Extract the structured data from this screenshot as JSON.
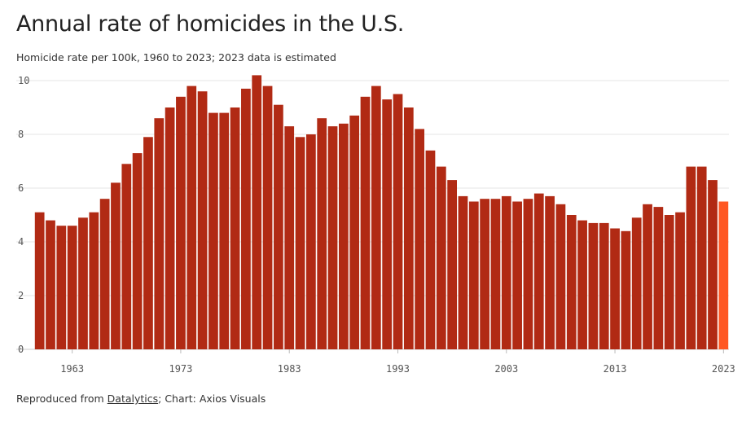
{
  "header": {
    "title": "Annual rate of homicides in the U.S.",
    "subtitle": "Homicide rate per 100k, 1960 to 2023; 2023 data is estimated"
  },
  "footer": {
    "prefix": "Reproduced from ",
    "source_link": "Datalytics",
    "suffix": "; Chart: Axios Visuals"
  },
  "colors": {
    "bar": "#b12a14",
    "estimate_bar": "#ff5722",
    "grid": "#e6e6e6",
    "axis_text": "#555555"
  },
  "chart_data": {
    "type": "bar",
    "title": "Annual rate of homicides in the U.S.",
    "subtitle": "Homicide rate per 100k, 1960 to 2023; 2023 data is estimated",
    "xlabel": "",
    "ylabel": "",
    "ylim": [
      0,
      10
    ],
    "yticks": [
      0,
      2,
      4,
      6,
      8,
      10
    ],
    "xtick_labels": [
      "1963",
      "1973",
      "1983",
      "1993",
      "2003",
      "2013",
      "2023"
    ],
    "grid": true,
    "estimated": [
      "2023"
    ],
    "categories": [
      "1960",
      "1961",
      "1962",
      "1963",
      "1964",
      "1965",
      "1966",
      "1967",
      "1968",
      "1969",
      "1970",
      "1971",
      "1972",
      "1973",
      "1974",
      "1975",
      "1976",
      "1977",
      "1978",
      "1979",
      "1980",
      "1981",
      "1982",
      "1983",
      "1984",
      "1985",
      "1986",
      "1987",
      "1988",
      "1989",
      "1990",
      "1991",
      "1992",
      "1993",
      "1994",
      "1995",
      "1996",
      "1997",
      "1998",
      "1999",
      "2000",
      "2001",
      "2002",
      "2003",
      "2004",
      "2005",
      "2006",
      "2007",
      "2008",
      "2009",
      "2010",
      "2011",
      "2012",
      "2013",
      "2014",
      "2015",
      "2016",
      "2017",
      "2018",
      "2019",
      "2020",
      "2021",
      "2022",
      "2023"
    ],
    "values": [
      5.1,
      4.8,
      4.6,
      4.6,
      4.9,
      5.1,
      5.6,
      6.2,
      6.9,
      7.3,
      7.9,
      8.6,
      9.0,
      9.4,
      9.8,
      9.6,
      8.8,
      8.8,
      9.0,
      9.7,
      10.2,
      9.8,
      9.1,
      8.3,
      7.9,
      8.0,
      8.6,
      8.3,
      8.4,
      8.7,
      9.4,
      9.8,
      9.3,
      9.5,
      9.0,
      8.2,
      7.4,
      6.8,
      6.3,
      5.7,
      5.5,
      5.6,
      5.6,
      5.7,
      5.5,
      5.6,
      5.8,
      5.7,
      5.4,
      5.0,
      4.8,
      4.7,
      4.7,
      4.5,
      4.4,
      4.9,
      5.4,
      5.3,
      5.0,
      5.1,
      6.8,
      6.8,
      6.3,
      5.5
    ]
  }
}
